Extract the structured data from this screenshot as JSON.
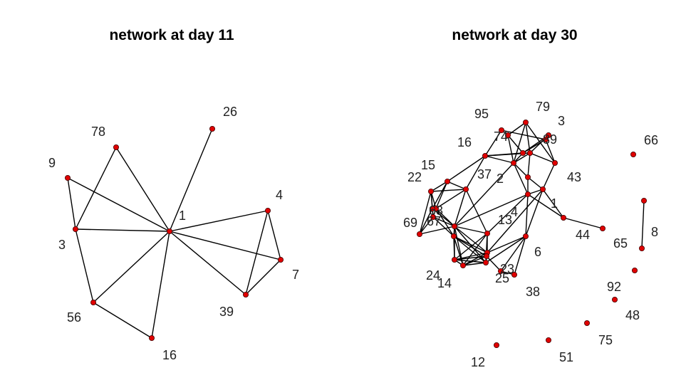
{
  "titles": {
    "left": "network at day 11",
    "right": "network at day 30"
  },
  "colors": {
    "node": "#e00000",
    "edge": "#000000",
    "label": "#222222"
  },
  "left_network": {
    "nodes": [
      "1",
      "3",
      "4",
      "7",
      "9",
      "16",
      "26",
      "39",
      "56",
      "78"
    ],
    "edges": [
      [
        "1",
        "26"
      ],
      [
        "1",
        "78"
      ],
      [
        "1",
        "9"
      ],
      [
        "1",
        "3"
      ],
      [
        "1",
        "4"
      ],
      [
        "1",
        "7"
      ],
      [
        "1",
        "39"
      ],
      [
        "1",
        "56"
      ],
      [
        "78",
        "3"
      ],
      [
        "9",
        "3"
      ],
      [
        "3",
        "56"
      ],
      [
        "56",
        "16"
      ],
      [
        "1",
        "16"
      ],
      [
        "4",
        "7"
      ],
      [
        "4",
        "39"
      ],
      [
        "39",
        "7"
      ]
    ]
  },
  "right_network": {
    "labels": [
      "95",
      "79",
      "3",
      "16",
      "74",
      "89",
      "15",
      "37",
      "2",
      "43",
      "22",
      "66",
      "1",
      "69",
      "63",
      "67",
      "13",
      "4",
      "44",
      "65",
      "8",
      "6",
      "24",
      "14",
      "23",
      "25",
      "38",
      "92",
      "48",
      "75",
      "12",
      "51"
    ]
  }
}
